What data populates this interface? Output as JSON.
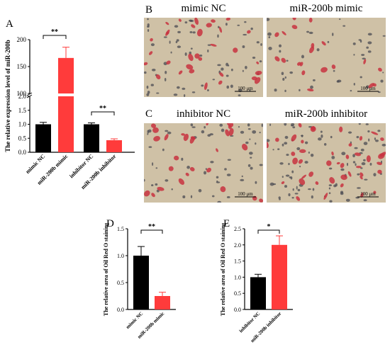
{
  "panels": {
    "a": {
      "letter": "A"
    },
    "b": {
      "letter": "B",
      "titles": [
        "mimic NC",
        "miR-200b mimic"
      ]
    },
    "c": {
      "letter": "C",
      "titles": [
        "inhibitor NC",
        "miR-200b inhibitor"
      ]
    },
    "d": {
      "letter": "D"
    },
    "e": {
      "letter": "E"
    }
  },
  "scale_bar_label": "100 μm",
  "colors": {
    "black_bar": "#000000",
    "red_bar": "#ff3b3b",
    "micro_bg": "#cfc1a6",
    "stain_red": "#c8333f"
  },
  "chart_data": [
    {
      "id": "A",
      "type": "bar",
      "ylabel": "The relative expression level of miR-200b",
      "categories": [
        "mimic NC",
        "miR-200b mimic",
        "inhibitor NC",
        "miR-200b inhibitor"
      ],
      "values": [
        1.0,
        166,
        1.0,
        0.43
      ],
      "errors": [
        0.07,
        20,
        0.05,
        0.05
      ],
      "colors": [
        "#000000",
        "#ff3b3b",
        "#000000",
        "#ff3b3b"
      ],
      "broken_axis": {
        "lower": [
          0,
          2.0
        ],
        "upper": [
          100,
          200
        ]
      },
      "lower_ticks": [
        "0.0",
        "0.5",
        "1.0",
        "1.5",
        "2.0"
      ],
      "upper_ticks": [
        "100",
        "150",
        "200"
      ],
      "significance": [
        {
          "pair": [
            0,
            1
          ],
          "label": "**"
        },
        {
          "pair": [
            2,
            3
          ],
          "label": "**"
        }
      ]
    },
    {
      "id": "D",
      "type": "bar",
      "ylabel": "The relative area of Oil Red O staining",
      "categories": [
        "mimic NC",
        "miR-200b mimic"
      ],
      "values": [
        1.0,
        0.25
      ],
      "errors": [
        0.17,
        0.07
      ],
      "colors": [
        "#000000",
        "#ff3b3b"
      ],
      "ylim": [
        0,
        1.5
      ],
      "yticks": [
        "0.0",
        "0.5",
        "1.0",
        "1.5"
      ],
      "significance": [
        {
          "pair": [
            0,
            1
          ],
          "label": "**"
        }
      ]
    },
    {
      "id": "E",
      "type": "bar",
      "ylabel": "The relative area of Oil Red O staining",
      "categories": [
        "inhibitor NC",
        "miR-200b inhibitor"
      ],
      "values": [
        1.0,
        2.0
      ],
      "errors": [
        0.09,
        0.28
      ],
      "colors": [
        "#000000",
        "#ff3b3b"
      ],
      "ylim": [
        0,
        2.5
      ],
      "yticks": [
        "0.0",
        "0.5",
        "1.0",
        "1.5",
        "2.0",
        "2.5"
      ],
      "significance": [
        {
          "pair": [
            0,
            1
          ],
          "label": "*"
        }
      ]
    }
  ]
}
